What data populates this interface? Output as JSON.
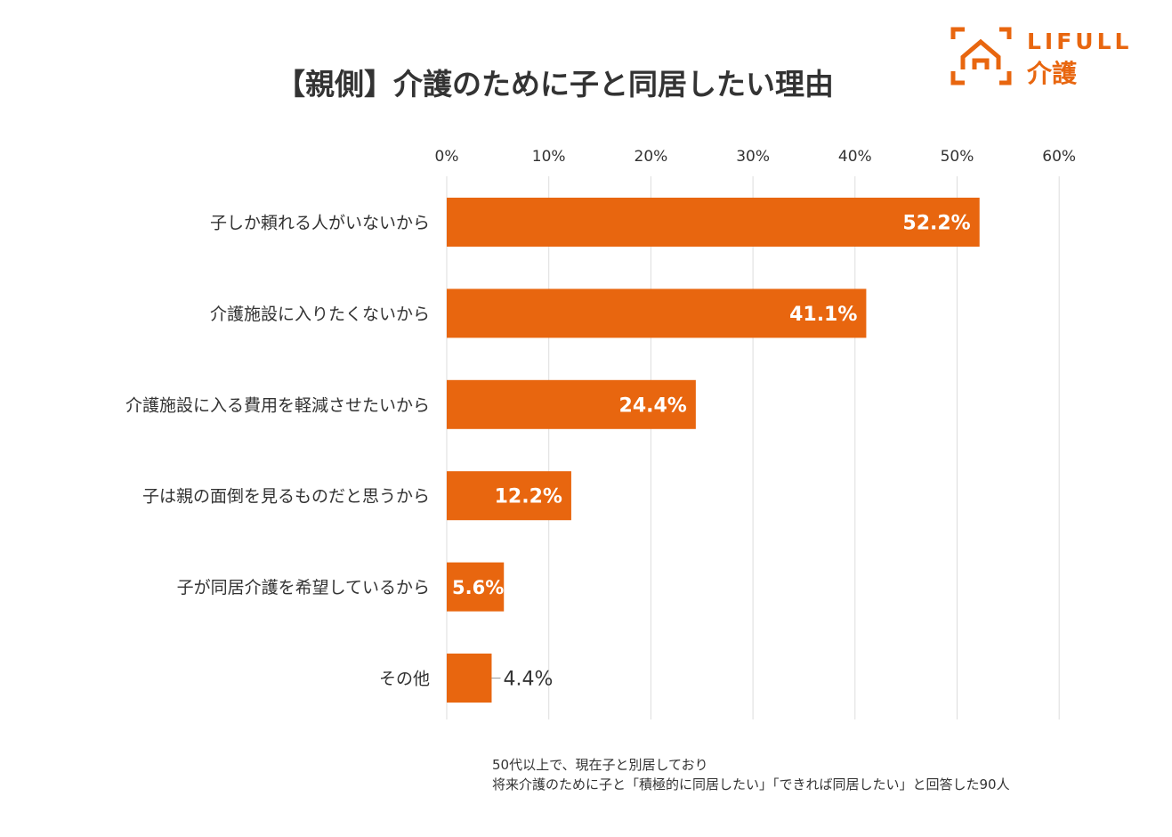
{
  "chart_data": {
    "type": "bar",
    "orientation": "horizontal",
    "title": "【親側】介護のために子と同居したい理由",
    "categories": [
      "子しか頼れる人がいないから",
      "介護施設に入りたくないから",
      "介護施設に入る費用を軽減させたいから",
      "子は親の面倒を見るものだと思うから",
      "子が同居介護を希望しているから",
      "その他"
    ],
    "values": [
      52.2,
      41.1,
      24.4,
      12.2,
      5.6,
      4.4
    ],
    "value_labels": [
      "52.2%",
      "41.1%",
      "24.4%",
      "12.2%",
      "5.6%",
      "4.4%"
    ],
    "xlim": [
      0,
      60
    ],
    "xticks": [
      0,
      10,
      20,
      30,
      40,
      50,
      60
    ],
    "xtick_labels": [
      "0%",
      "10%",
      "20%",
      "30%",
      "40%",
      "50%",
      "60%"
    ],
    "grid": true,
    "bar_color": "#e8660f",
    "grid_color": "#dddddd"
  },
  "logo": {
    "brand": "LIFULL",
    "sub": "介護",
    "color": "#e8660f"
  },
  "note": {
    "line1": "50代以上で、現在子と別居しており",
    "line2": "将来介護のために子と「積極的に同居したい」「できれば同居したい」と回答した90人"
  }
}
